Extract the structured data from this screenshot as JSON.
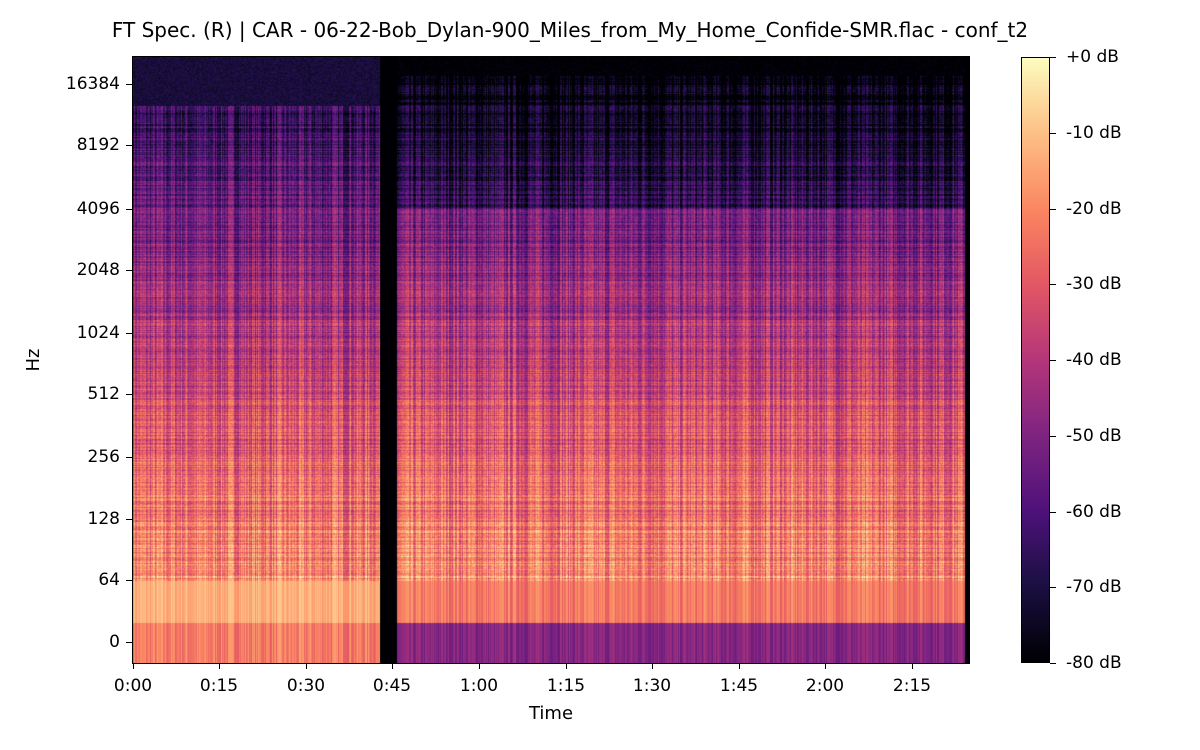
{
  "chart_data": {
    "type": "heatmap",
    "title": "FT Spec. (R) | CAR - 06-22-Bob_Dylan-900_Miles_from_My_Home_Confide-SMR.flac - conf_t2",
    "xlabel": "Time",
    "ylabel": "Hz",
    "x_ticks": [
      "0:00",
      "0:15",
      "0:30",
      "0:45",
      "1:00",
      "1:15",
      "1:30",
      "1:45",
      "2:00",
      "2:15"
    ],
    "y_ticks": [
      "0",
      "64",
      "128",
      "256",
      "512",
      "1024",
      "2048",
      "4096",
      "8192",
      "16384"
    ],
    "y_scale": "log",
    "colormap": "magma",
    "colorbar": {
      "ticks": [
        "+0 dB",
        "-10 dB",
        "-20 dB",
        "-30 dB",
        "-40 dB",
        "-50 dB",
        "-60 dB",
        "-70 dB",
        "-80 dB"
      ],
      "range_db": [
        -80,
        0
      ]
    },
    "duration_seconds": 145,
    "silent_gap_seconds": [
      43,
      46
    ]
  }
}
